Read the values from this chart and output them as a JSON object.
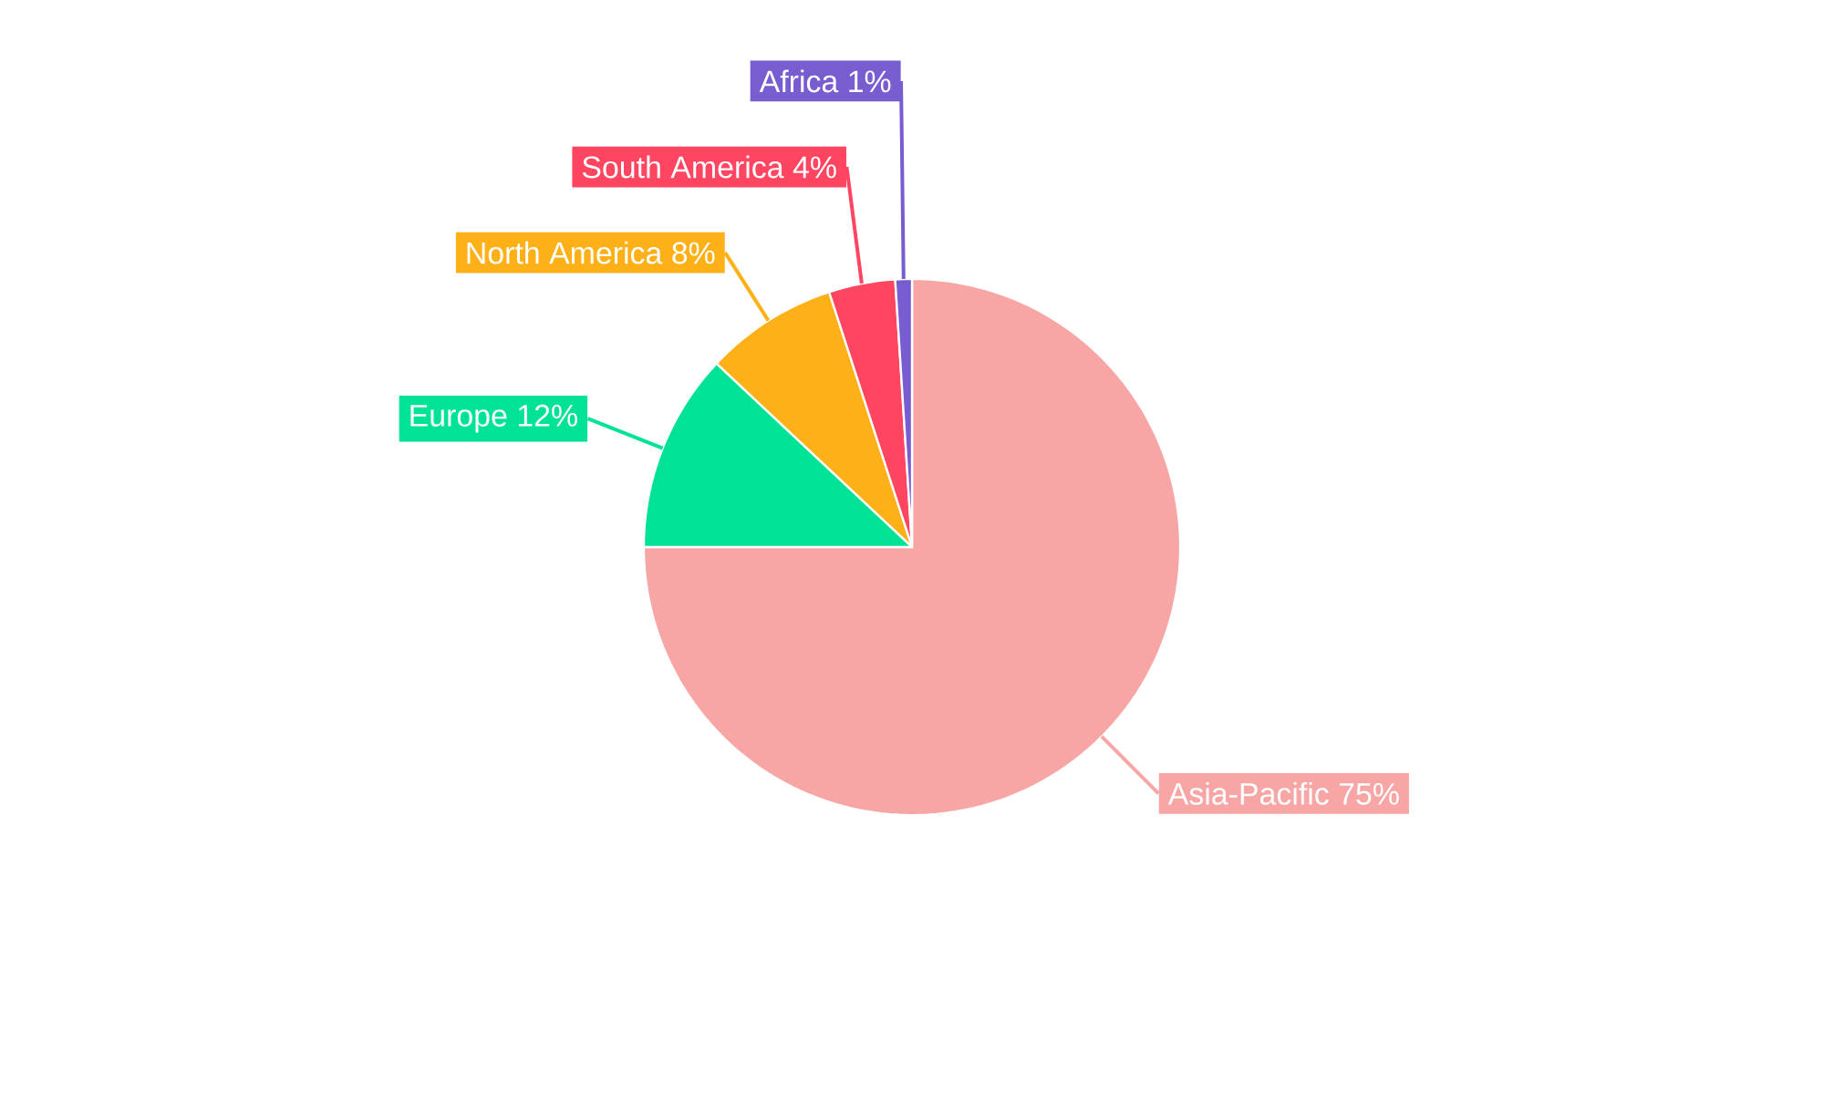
{
  "chart_data": {
    "type": "pie",
    "categories": [
      "Asia-Pacific",
      "Europe",
      "North America",
      "South America",
      "Africa"
    ],
    "values": [
      75,
      12,
      8,
      4,
      1
    ],
    "value_labels": [
      "75%",
      "12%",
      "8%",
      "4%",
      "1%"
    ],
    "colors": [
      "#f8a5a5",
      "#00e396",
      "#feb019",
      "#ff4560",
      "#775dd0"
    ]
  }
}
